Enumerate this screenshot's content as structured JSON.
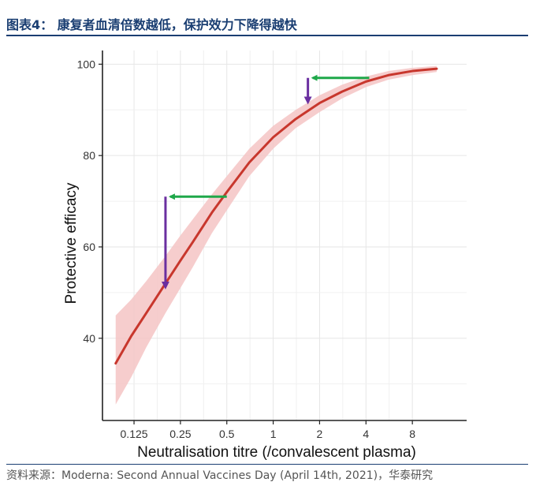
{
  "figure": {
    "title": "图表4：  康复者血清倍数越低，保护效力下降得越快",
    "source": "资料来源：Moderna: Second Annual Vaccines Day (April 14th, 2021)，华泰研究"
  },
  "chart_data": {
    "type": "line",
    "title": "",
    "xlabel": "Neutralisation titre (/convalescent plasma)",
    "ylabel": "Protective efficacy",
    "x_scale": "log2",
    "x_ticks": [
      0.125,
      0.25,
      0.5,
      1,
      2,
      4,
      8
    ],
    "x_tick_labels": [
      "0.125",
      "0.25",
      "0.5",
      "1",
      "2",
      "4",
      "8"
    ],
    "xlim": [
      0.078,
      18
    ],
    "y_ticks": [
      40,
      60,
      80,
      100
    ],
    "y_tick_labels": [
      "40",
      "60",
      "80",
      "100"
    ],
    "ylim": [
      22,
      103
    ],
    "grid": true,
    "series": [
      {
        "color": "#c8372d",
        "band_color": "#f4c4c4",
        "x": [
          0.095,
          0.12,
          0.15,
          0.2,
          0.25,
          0.3,
          0.4,
          0.5,
          0.7,
          1,
          1.4,
          2,
          2.8,
          4,
          5.6,
          8,
          11.5
        ],
        "y": [
          34.5,
          40.5,
          45.5,
          52,
          57,
          61,
          67.5,
          72,
          78.5,
          84,
          88,
          91.5,
          94,
          96.2,
          97.6,
          98.5,
          99
        ],
        "lower": [
          25.5,
          31.5,
          38,
          45.5,
          51,
          55.5,
          63,
          68,
          75.5,
          81.5,
          86,
          89.5,
          92.5,
          95,
          96.6,
          97.6,
          98.3
        ],
        "upper": [
          45,
          48.5,
          52.5,
          58,
          62.5,
          66,
          71.5,
          75.5,
          81.5,
          86.5,
          90,
          93.2,
          95.5,
          97.3,
          98.5,
          99.2,
          99.6
        ]
      }
    ],
    "annotations": [
      {
        "kind": "green-arrow",
        "from_x": 0.5,
        "to_x": 0.2,
        "y": 71
      },
      {
        "kind": "purple-arrow",
        "x": 0.2,
        "from_y": 71,
        "to_y": 50
      },
      {
        "kind": "green-arrow",
        "from_x": 4.2,
        "to_x": 1.68,
        "y": 97
      },
      {
        "kind": "purple-arrow",
        "x": 1.68,
        "from_y": 97,
        "to_y": 90.5
      }
    ]
  }
}
